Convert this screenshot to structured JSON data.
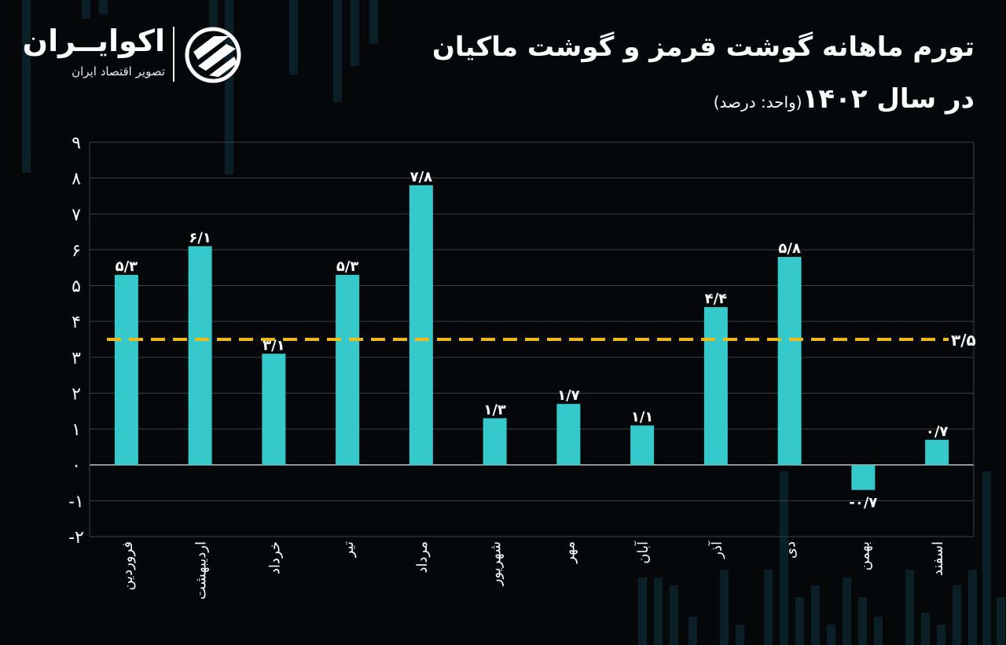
{
  "logo": {
    "name": "اکوایــران",
    "tagline": "تصویر اقتصاد ایران"
  },
  "title": {
    "line1": "تورم ماهانه گوشت قرمز و گوشت ماکیان",
    "line2_main": "در سال ۱۴۰۲",
    "line2_unit": "(واحد: درصد)"
  },
  "colors": {
    "bar": "#35c9cc",
    "average_line": "#f0b916",
    "grid": "#3d4147",
    "background": "#050709",
    "text": "#ffffff"
  },
  "chart_data": {
    "type": "bar",
    "categories": [
      "فروردین",
      "اردیبهشت",
      "خرداد",
      "تیر",
      "مرداد",
      "شهریور",
      "مهر",
      "آبان",
      "آذر",
      "دی",
      "بهمن",
      "اسفند"
    ],
    "values": [
      5.3,
      6.1,
      3.1,
      5.3,
      7.8,
      1.3,
      1.7,
      1.1,
      4.4,
      5.8,
      -0.7,
      0.7
    ],
    "value_labels": [
      "۵/۳",
      "۶/۱",
      "۳/۱",
      "۵/۳",
      "۷/۸",
      "۱/۳",
      "۱/۷",
      "۱/۱",
      "۴/۴",
      "۵/۸",
      "-۰/۷",
      "۰/۷"
    ],
    "average": 3.5,
    "average_label": "۳/۵",
    "ylim": [
      -2,
      9
    ],
    "yticks": [
      -2,
      -1,
      0,
      1,
      2,
      3,
      4,
      5,
      6,
      7,
      8,
      9
    ],
    "ytick_labels": [
      "-۲",
      "-۱",
      "۰",
      "۱",
      "۲",
      "۳",
      "۴",
      "۵",
      "۶",
      "۷",
      "۸",
      "۹"
    ],
    "grid": true,
    "legend": "none"
  }
}
